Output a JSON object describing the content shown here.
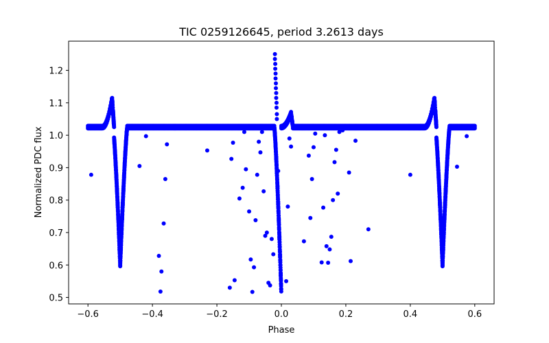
{
  "chart_data": {
    "type": "scatter",
    "title": "TIC 0259126645, period 3.2613 days",
    "xlabel": "Phase",
    "ylabel": "Normalized PDC flux",
    "xlim": [
      -0.66,
      0.66
    ],
    "ylim": [
      0.48,
      1.29
    ],
    "xticks": [
      -0.6,
      -0.4,
      -0.2,
      0.0,
      0.2,
      0.4,
      0.6
    ],
    "xtick_labels": [
      "−0.6",
      "−0.4",
      "−0.2",
      "0.0",
      "0.2",
      "0.4",
      "0.6"
    ],
    "yticks": [
      0.5,
      0.6,
      0.7,
      0.8,
      0.9,
      1.0,
      1.1,
      1.2
    ],
    "ytick_labels": [
      "0.5",
      "0.6",
      "0.7",
      "0.8",
      "0.9",
      "1.0",
      "1.1",
      "1.2"
    ],
    "grid": false,
    "marker_color": "#0000ff",
    "baseline_flux": 1.025,
    "x_range_data": [
      -0.6,
      0.6
    ],
    "primary_eclipses": [
      {
        "phase": -0.5,
        "min_flux": 0.6
      },
      {
        "phase": 0.0,
        "min_flux": 0.51
      },
      {
        "phase": 0.5,
        "min_flux": 0.6
      }
    ],
    "flare_peaks": [
      {
        "phase": -0.525,
        "flux": 1.115
      },
      {
        "phase": 0.03,
        "flux": 1.068
      },
      {
        "phase": 0.475,
        "flux": 1.115
      }
    ],
    "spike_points": [
      {
        "x": -0.02,
        "y": 1.25
      },
      {
        "x": -0.02,
        "y": 1.235
      },
      {
        "x": -0.019,
        "y": 1.22
      },
      {
        "x": -0.019,
        "y": 1.205
      },
      {
        "x": -0.018,
        "y": 1.19
      },
      {
        "x": -0.018,
        "y": 1.175
      },
      {
        "x": -0.017,
        "y": 1.16
      },
      {
        "x": -0.017,
        "y": 1.145
      },
      {
        "x": -0.016,
        "y": 1.13
      },
      {
        "x": -0.016,
        "y": 1.115
      },
      {
        "x": -0.015,
        "y": 1.1
      },
      {
        "x": -0.015,
        "y": 1.085
      },
      {
        "x": -0.014,
        "y": 1.065
      },
      {
        "x": -0.014,
        "y": 1.05
      }
    ],
    "scatter_points": [
      {
        "x": -0.59,
        "y": 0.878
      },
      {
        "x": -0.42,
        "y": 0.997
      },
      {
        "x": -0.44,
        "y": 0.905
      },
      {
        "x": -0.38,
        "y": 0.628
      },
      {
        "x": -0.375,
        "y": 0.518
      },
      {
        "x": -0.372,
        "y": 0.58
      },
      {
        "x": -0.365,
        "y": 0.728
      },
      {
        "x": -0.36,
        "y": 0.865
      },
      {
        "x": -0.355,
        "y": 0.972
      },
      {
        "x": -0.23,
        "y": 0.953
      },
      {
        "x": -0.16,
        "y": 0.53
      },
      {
        "x": -0.155,
        "y": 0.927
      },
      {
        "x": -0.15,
        "y": 0.977
      },
      {
        "x": -0.145,
        "y": 0.553
      },
      {
        "x": -0.13,
        "y": 0.805
      },
      {
        "x": -0.12,
        "y": 0.838
      },
      {
        "x": -0.11,
        "y": 0.895
      },
      {
        "x": -0.115,
        "y": 1.01
      },
      {
        "x": -0.1,
        "y": 0.765
      },
      {
        "x": -0.095,
        "y": 0.617
      },
      {
        "x": -0.09,
        "y": 0.517
      },
      {
        "x": -0.085,
        "y": 0.593
      },
      {
        "x": -0.08,
        "y": 0.738
      },
      {
        "x": -0.075,
        "y": 0.878
      },
      {
        "x": -0.07,
        "y": 0.98
      },
      {
        "x": -0.065,
        "y": 0.947
      },
      {
        "x": -0.06,
        "y": 1.01
      },
      {
        "x": -0.055,
        "y": 0.827
      },
      {
        "x": -0.05,
        "y": 0.69
      },
      {
        "x": -0.045,
        "y": 0.7
      },
      {
        "x": -0.04,
        "y": 0.545
      },
      {
        "x": -0.035,
        "y": 0.537
      },
      {
        "x": -0.03,
        "y": 0.68
      },
      {
        "x": -0.025,
        "y": 0.633
      },
      {
        "x": -0.01,
        "y": 0.89
      },
      {
        "x": 0.015,
        "y": 0.55
      },
      {
        "x": 0.02,
        "y": 0.78
      },
      {
        "x": 0.025,
        "y": 0.99
      },
      {
        "x": 0.07,
        "y": 0.673
      },
      {
        "x": 0.085,
        "y": 0.937
      },
      {
        "x": 0.09,
        "y": 0.745
      },
      {
        "x": 0.095,
        "y": 0.865
      },
      {
        "x": 0.1,
        "y": 0.963
      },
      {
        "x": 0.105,
        "y": 1.005
      },
      {
        "x": 0.125,
        "y": 0.608
      },
      {
        "x": 0.13,
        "y": 0.777
      },
      {
        "x": 0.135,
        "y": 1.0
      },
      {
        "x": 0.14,
        "y": 0.658
      },
      {
        "x": 0.145,
        "y": 0.607
      },
      {
        "x": 0.15,
        "y": 0.648
      },
      {
        "x": 0.155,
        "y": 0.687
      },
      {
        "x": 0.16,
        "y": 0.8
      },
      {
        "x": 0.165,
        "y": 0.917
      },
      {
        "x": 0.17,
        "y": 0.955
      },
      {
        "x": 0.175,
        "y": 0.82
      },
      {
        "x": 0.18,
        "y": 1.01
      },
      {
        "x": 0.19,
        "y": 1.015
      },
      {
        "x": 0.21,
        "y": 0.885
      },
      {
        "x": 0.215,
        "y": 0.612
      },
      {
        "x": 0.23,
        "y": 0.983
      },
      {
        "x": 0.27,
        "y": 0.71
      },
      {
        "x": 0.4,
        "y": 0.878
      },
      {
        "x": 0.545,
        "y": 0.903
      },
      {
        "x": 0.575,
        "y": 0.997
      },
      {
        "x": 0.03,
        "y": 0.965
      }
    ]
  }
}
